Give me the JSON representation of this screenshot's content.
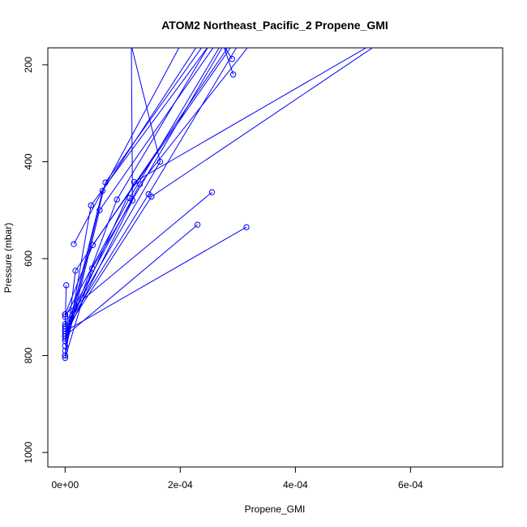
{
  "chart_data": {
    "type": "line",
    "title": "ATOM2 Northeast_Pacific_2 Propene_GMI",
    "xlabel": "Propene_GMI",
    "ylabel": "Pressure (mbar)",
    "xlim": [
      -3e-05,
      0.00076
    ],
    "ylim": [
      1030,
      165
    ],
    "y_reversed": true,
    "x_ticks": [
      {
        "value": 0,
        "label": "0e+00"
      },
      {
        "value": 0.0002,
        "label": "2e-04"
      },
      {
        "value": 0.0004,
        "label": "4e-04"
      },
      {
        "value": 0.0006,
        "label": "6e-04"
      }
    ],
    "y_ticks": [
      {
        "value": 200,
        "label": "200"
      },
      {
        "value": 400,
        "label": "400"
      },
      {
        "value": 600,
        "label": "600"
      },
      {
        "value": 800,
        "label": "800"
      },
      {
        "value": 1000,
        "label": "1000"
      }
    ],
    "grid": false,
    "color": "#0000ff",
    "segments": [
      [
        [
          0.000115,
          160
        ],
        [
          0.000117,
          480
        ],
        [
          0.0,
          760
        ]
      ],
      [
        [
          0.000115,
          160
        ],
        [
          0.000165,
          400
        ],
        [
          0.0,
          740
        ]
      ],
      [
        [
          0.00023,
          160
        ],
        [
          6.5e-05,
          460
        ],
        [
          0.0,
          770
        ]
      ],
      [
        [
          0.00025,
          160
        ],
        [
          4.5e-05,
          490
        ],
        [
          0.0,
          800
        ]
      ],
      [
        [
          0.000275,
          160
        ],
        [
          0.00029,
          188
        ]
      ],
      [
        [
          0.000275,
          160
        ],
        [
          0.000292,
          220
        ]
      ],
      [
        [
          0.00027,
          160
        ],
        [
          0.000112,
          475
        ],
        [
          0.0,
          720
        ]
      ],
      [
        [
          0.0003,
          160
        ],
        [
          0.000145,
          467
        ],
        [
          0.0,
          745
        ]
      ],
      [
        [
          0.00032,
          160
        ],
        [
          0.00013,
          446
        ],
        [
          0.0,
          735
        ]
      ],
      [
        [
          0.00024,
          160
        ],
        [
          7e-05,
          443
        ],
        [
          0.0,
          780
        ]
      ],
      [
        [
          0.00054,
          160
        ],
        [
          0.00015,
          472
        ],
        [
          0.0,
          750
        ]
      ],
      [
        [
          0.00053,
          160
        ],
        [
          0.00012,
          442
        ],
        [
          0.0,
          755
        ]
      ],
      [
        [
          0.00025,
          160
        ],
        [
          9e-05,
          478
        ],
        [
          0.0,
          765
        ]
      ],
      [
        [
          0.00026,
          160
        ],
        [
          6e-05,
          500
        ],
        [
          0.0,
          790
        ]
      ],
      [
        [
          0.0002,
          160
        ],
        [
          1.5e-05,
          570
        ]
      ],
      [
        [
          0.00029,
          160
        ],
        [
          4.8e-05,
          572
        ],
        [
          0.0,
          715
        ]
      ],
      [
        [
          0.000285,
          160
        ],
        [
          1.8e-05,
          625
        ],
        [
          0.0,
          800
        ]
      ],
      [
        [
          0.000275,
          160
        ],
        [
          4.7e-05,
          620
        ],
        [
          0.0,
          805
        ]
      ],
      [
        [
          0.000255,
          463
        ],
        [
          0.0,
          715
        ]
      ],
      [
        [
          0.00023,
          530
        ],
        [
          0.0,
          760
        ]
      ],
      [
        [
          0.000315,
          535
        ],
        [
          0.0,
          750
        ]
      ],
      [
        [
          2e-06,
          655
        ],
        [
          0.0,
          740
        ]
      ]
    ]
  }
}
